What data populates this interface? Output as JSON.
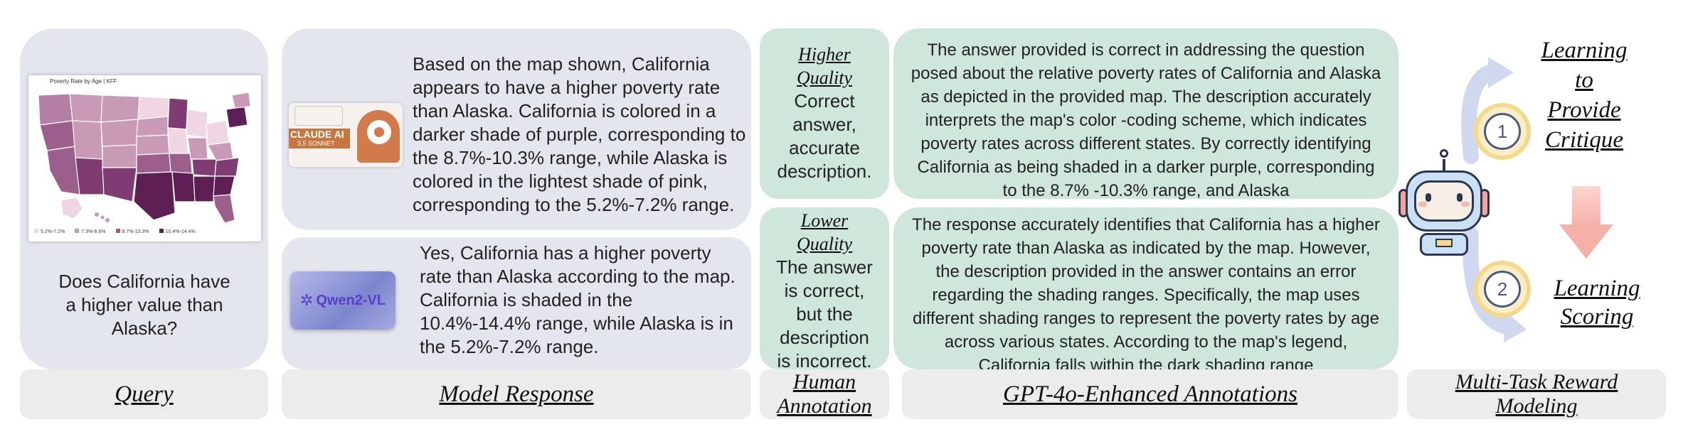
{
  "query": {
    "question": "Does California have a higher value than Alaska?",
    "map": {
      "title": "Poverty Rate by Age | KFF",
      "legend": [
        "5.2%-7.2%",
        "7.3%-8.6%",
        "8.7%-10.3%",
        "10.4%-14.4%"
      ],
      "legend_colors": [
        "#f0d5e2",
        "#c99ab5",
        "#9c5e8b",
        "#5e1f55"
      ]
    },
    "label": "Query"
  },
  "responses": [
    {
      "model_logo_text": "CLAUDE AI",
      "model_logo_sub": "3.5 SONNET",
      "text": "Based on the map shown, California appears to have a higher poverty rate than Alaska. California is colored in a darker shade of purple, corresponding to the 8.7%-10.3% range, while Alaska is colored in the lightest shade of pink, corresponding to the 5.2%-7.2% range."
    },
    {
      "model_logo_text": "Qwen2-VL",
      "text": "Yes, California has a higher poverty rate than Alaska according to the map. California is shaded in the 10.4%-14.4% range, while Alaska is in the 5.2%-7.2% range."
    }
  ],
  "response_label": "Model Response",
  "human": {
    "higher": {
      "title": "Higher Quality",
      "text": "Correct answer, accurate description."
    },
    "lower": {
      "title": "Lower Quality",
      "text": "The answer is correct, but the description is incorrect."
    },
    "label": "Human Annotation"
  },
  "gpt": {
    "higher_text": "The answer provided is correct in addressing the question posed about the relative poverty rates of  California and Alaska as depicted in the provided map. The description accurately interprets the map's color -coding scheme, which indicates poverty rates across different states. By correctly identifying California as being shaded in a darker purple, corresponding to the 8.7% -10.3% range, and Alaska",
    "lower_text": "The response accurately identifies that California has a higher poverty rate than Alaska as indicated by the map. However, the description provided in the answer contains an error regarding the shading ranges. Specifically, the map uses different shading ranges to represent the poverty rates by age across various states. According to the map's legend, California falls within the dark shading range",
    "label": "GPT-4o-Enhanced Annotations"
  },
  "reward": {
    "task1_number": "1",
    "task1_label": "Learning to Provide Critique",
    "task2_number": "2",
    "task2_label": "Learning Scoring",
    "label": "Multi-Task Reward Modeling"
  },
  "colors": {
    "panel_grey": "#e4e6ee",
    "panel_green": "#cfe7da",
    "label_bar": "#ececec",
    "arrow_blue": "#cfd8ee",
    "arrow_pink": "#f5b0a8",
    "ring_gold": "#f4d98a"
  }
}
